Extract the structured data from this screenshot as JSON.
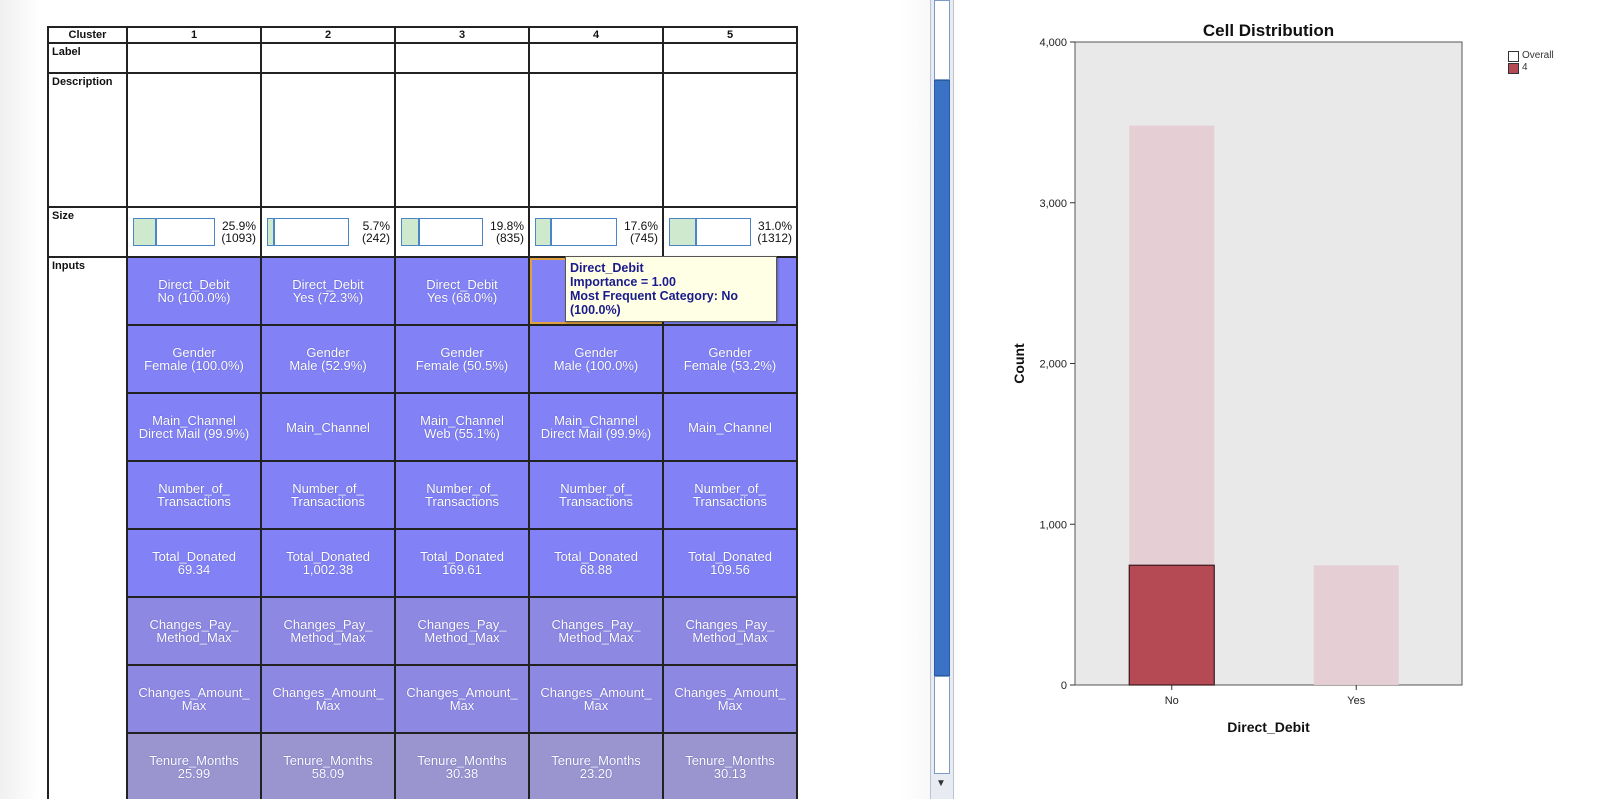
{
  "clusters_table": {
    "header_label": "Cluster",
    "clusters": [
      "1",
      "2",
      "3",
      "4",
      "5"
    ],
    "row_labels": {
      "label": "Label",
      "description": "Description",
      "size": "Size",
      "inputs": "Inputs"
    },
    "sizes": [
      {
        "pct": "25.9%",
        "count": "(1093)",
        "fraction": 0.259
      },
      {
        "pct": "5.7%",
        "count": "(242)",
        "fraction": 0.057
      },
      {
        "pct": "19.8%",
        "count": "(835)",
        "fraction": 0.198
      },
      {
        "pct": "17.6%",
        "count": "(745)",
        "fraction": 0.176
      },
      {
        "pct": "31.0%",
        "count": "(1312)",
        "fraction": 0.31
      }
    ],
    "inputs": [
      [
        "Direct_Debit\nNo (100.0%)",
        "Direct_Debit\nYes (72.3%)",
        "Direct_Debit\nYes (68.0%)",
        "",
        "Direct_Debit"
      ],
      [
        "Gender\nFemale (100.0%)",
        "Gender\nMale (52.9%)",
        "Gender\nFemale (50.5%)",
        "Gender\nMale (100.0%)",
        "Gender\nFemale (53.2%)"
      ],
      [
        "Main_Channel\nDirect Mail (99.9%)",
        "Main_Channel",
        "Main_Channel\nWeb (55.1%)",
        "Main_Channel\nDirect Mail (99.9%)",
        "Main_Channel"
      ],
      [
        "Number_of_\nTransactions",
        "Number_of_\nTransactions",
        "Number_of_\nTransactions",
        "Number_of_\nTransactions",
        "Number_of_\nTransactions"
      ],
      [
        "Total_Donated\n69.34",
        "Total_Donated\n1,002.38",
        "Total_Donated\n169.61",
        "Total_Donated\n68.88",
        "Total_Donated\n109.56"
      ],
      [
        "Changes_Pay_\nMethod_Max",
        "Changes_Pay_\nMethod_Max",
        "Changes_Pay_\nMethod_Max",
        "Changes_Pay_\nMethod_Max",
        "Changes_Pay_\nMethod_Max"
      ],
      [
        "Changes_Amount_\nMax",
        "Changes_Amount_\nMax",
        "Changes_Amount_\nMax",
        "Changes_Amount_\nMax",
        "Changes_Amount_\nMax"
      ],
      [
        "Tenure_Months\n25.99",
        "Tenure_Months\n58.09",
        "Tenure_Months\n30.38",
        "Tenure_Months\n23.20",
        "Tenure_Months\n30.13"
      ]
    ]
  },
  "tooltip": {
    "line1": "Direct_Debit",
    "line2": "Importance = 1.00",
    "line3": "Most Frequent Category: No",
    "line4": "(100.0%)"
  },
  "colors": {
    "feature_cell": "#8282f6",
    "overall_bar": "#e6cdd3",
    "cluster_bar": "#b54a55",
    "selection_outline": "#e0a040"
  },
  "chart_data": {
    "type": "bar",
    "title": "Cell Distribution",
    "xlabel": "Direct_Debit",
    "ylabel": "Count",
    "categories": [
      "No",
      "Yes"
    ],
    "series": [
      {
        "name": "Overall",
        "values": [
          3480,
          745
        ]
      },
      {
        "name": "4",
        "values": [
          745,
          0
        ]
      }
    ],
    "ylim": [
      0,
      4000
    ],
    "yticks": [
      "0",
      "1,000",
      "2,000",
      "3,000",
      "4,000"
    ],
    "ytick_values": [
      0,
      1000,
      2000,
      3000,
      4000
    ],
    "legend_position": "top-right",
    "grid": false
  }
}
